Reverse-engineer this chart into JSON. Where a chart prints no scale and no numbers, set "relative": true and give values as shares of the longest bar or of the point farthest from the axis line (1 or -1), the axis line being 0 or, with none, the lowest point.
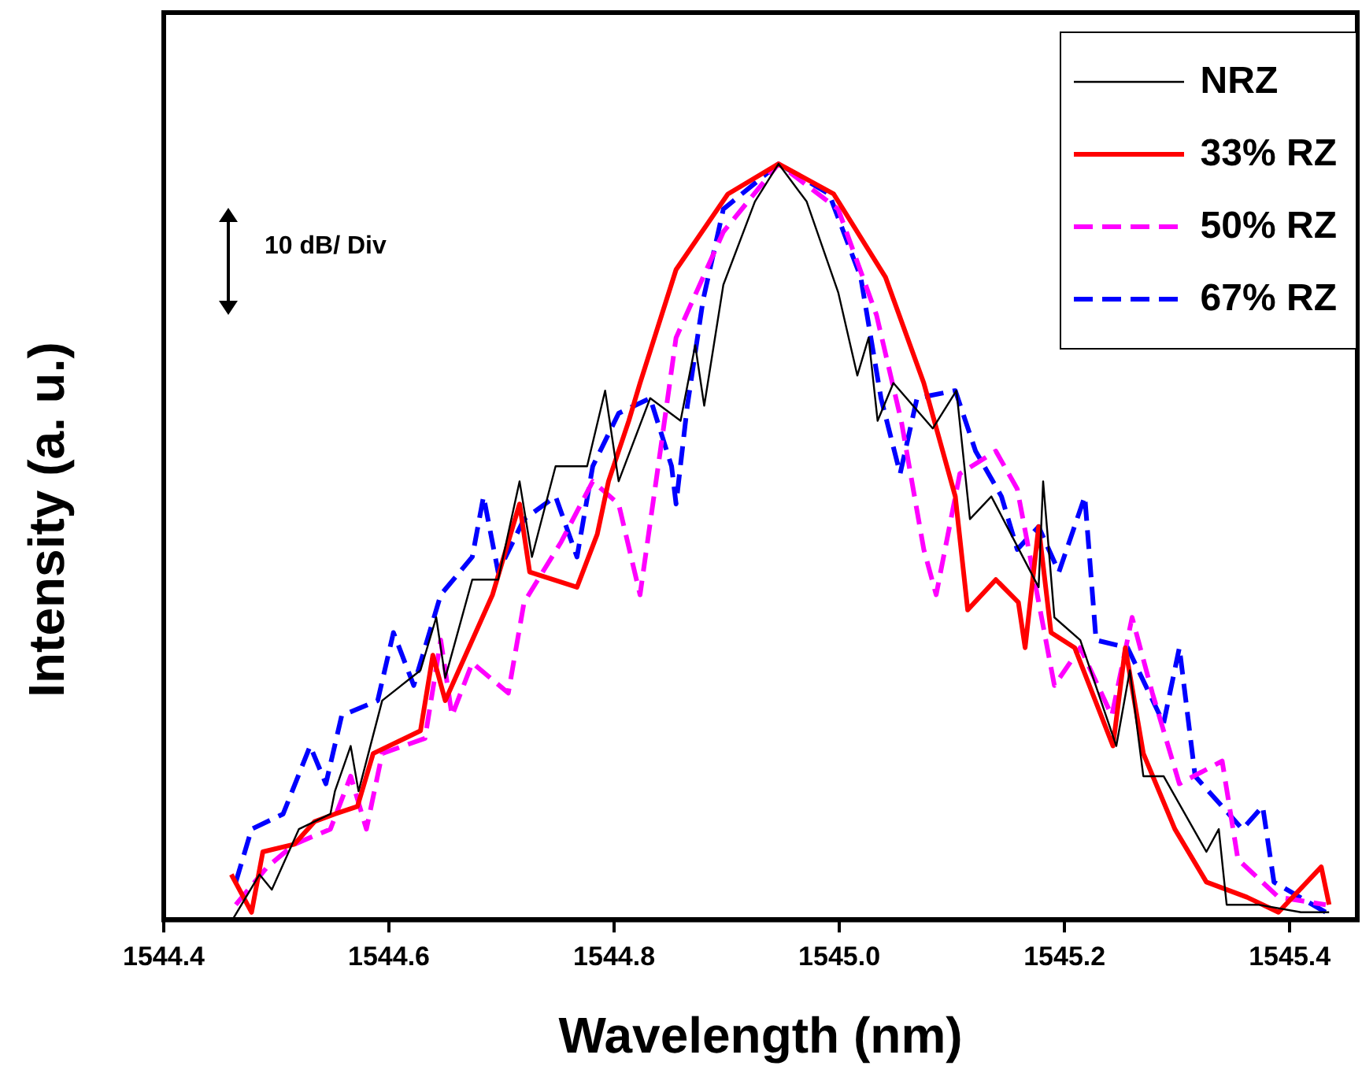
{
  "chart_data": {
    "type": "line",
    "relative": true,
    "xlabel": "Wavelength (nm)",
    "ylabel": "Intensity (a. u.)",
    "annotations": [
      "10 dB/ Div"
    ],
    "xlim": [
      1544.4,
      1545.46
    ],
    "xticks": [
      {
        "value": 1544.4,
        "label": "1544.4"
      },
      {
        "value": 1544.6,
        "label": "1544.6"
      },
      {
        "value": 1544.8,
        "label": "1544.8"
      },
      {
        "value": 1545.0,
        "label": "1545.0"
      },
      {
        "value": 1545.2,
        "label": "1545.2"
      },
      {
        "value": 1545.4,
        "label": "1545.4"
      }
    ],
    "grid": false,
    "legend": "top right",
    "marker": "none",
    "tick_labels": "x",
    "series": [
      {
        "name": "NRZ",
        "color": "#000000",
        "line_style": "solid",
        "x": [
          1544.461,
          1544.485,
          1544.496,
          1544.52,
          1544.548,
          1544.552,
          1544.566,
          1544.573,
          1544.594,
          1544.628,
          1544.642,
          1544.65,
          1544.674,
          1544.697,
          1544.716,
          1544.727,
          1544.748,
          1544.776,
          1544.792,
          1544.804,
          1544.832,
          1544.859,
          1544.872,
          1544.88,
          1544.897,
          1544.925,
          1544.946,
          1544.971,
          1544.999,
          1545.016,
          1545.026,
          1545.034,
          1545.048,
          1545.083,
          1545.104,
          1545.116,
          1545.135,
          1545.177,
          1545.181,
          1545.191,
          1545.214,
          1545.246,
          1545.258,
          1545.27,
          1545.288,
          1545.326,
          1545.337,
          1545.344,
          1545.372,
          1545.41,
          1545.435
        ],
        "values": [
          0,
          0.06,
          0.04,
          0.12,
          0.14,
          0.17,
          0.23,
          0.17,
          0.29,
          0.33,
          0.4,
          0.32,
          0.45,
          0.45,
          0.58,
          0.48,
          0.6,
          0.6,
          0.7,
          0.58,
          0.69,
          0.66,
          0.76,
          0.68,
          0.84,
          0.95,
          1,
          0.95,
          0.83,
          0.72,
          0.77,
          0.66,
          0.71,
          0.65,
          0.7,
          0.53,
          0.56,
          0.44,
          0.58,
          0.4,
          0.37,
          0.23,
          0.33,
          0.19,
          0.19,
          0.09,
          0.12,
          0.02,
          0.02,
          0.01,
          0.01
        ]
      },
      {
        "name": "33% RZ",
        "color": "#ff0000",
        "line_style": "solid",
        "x": [
          1544.46,
          1544.478,
          1544.488,
          1544.516,
          1544.534,
          1544.552,
          1544.572,
          1544.586,
          1544.628,
          1544.639,
          1544.65,
          1544.692,
          1544.716,
          1544.725,
          1544.767,
          1544.785,
          1544.795,
          1544.813,
          1544.823,
          1544.855,
          1544.901,
          1544.946,
          1544.995,
          1545.041,
          1545.075,
          1545.103,
          1545.114,
          1545.139,
          1545.159,
          1545.165,
          1545.177,
          1545.188,
          1545.209,
          1545.243,
          1545.254,
          1545.27,
          1545.298,
          1545.326,
          1545.362,
          1545.39,
          1545.428,
          1545.435
        ],
        "values": [
          0.06,
          0.01,
          0.09,
          0.1,
          0.13,
          0.14,
          0.15,
          0.22,
          0.25,
          0.35,
          0.29,
          0.43,
          0.55,
          0.46,
          0.44,
          0.51,
          0.58,
          0.66,
          0.71,
          0.86,
          0.96,
          1,
          0.96,
          0.85,
          0.71,
          0.56,
          0.41,
          0.45,
          0.42,
          0.36,
          0.52,
          0.38,
          0.36,
          0.23,
          0.36,
          0.22,
          0.12,
          0.05,
          0.03,
          0.01,
          0.07,
          0.02
        ]
      },
      {
        "name": "50% RZ",
        "color": "#ff00ff",
        "line_style": "dashed",
        "x": [
          1544.464,
          1544.492,
          1544.516,
          1544.548,
          1544.566,
          1544.58,
          1544.594,
          1544.632,
          1544.646,
          1544.656,
          1544.674,
          1544.706,
          1544.72,
          1544.753,
          1544.781,
          1544.804,
          1544.823,
          1544.841,
          1544.855,
          1544.897,
          1544.946,
          1544.999,
          1545.033,
          1545.055,
          1545.075,
          1545.086,
          1545.107,
          1545.139,
          1545.158,
          1545.172,
          1545.191,
          1545.214,
          1545.242,
          1545.26,
          1545.278,
          1545.302,
          1545.34,
          1545.354,
          1545.39,
          1545.432
        ],
        "values": [
          0.02,
          0.07,
          0.1,
          0.12,
          0.19,
          0.12,
          0.22,
          0.24,
          0.37,
          0.27,
          0.34,
          0.3,
          0.42,
          0.5,
          0.58,
          0.55,
          0.43,
          0.62,
          0.77,
          0.91,
          1,
          0.94,
          0.8,
          0.66,
          0.49,
          0.43,
          0.59,
          0.62,
          0.57,
          0.46,
          0.31,
          0.36,
          0.27,
          0.4,
          0.3,
          0.18,
          0.21,
          0.08,
          0.03,
          0.02
        ]
      },
      {
        "name": "67% RZ",
        "color": "#0000ff",
        "line_style": "dashed",
        "x": [
          1544.464,
          1544.478,
          1544.506,
          1544.53,
          1544.544,
          1544.558,
          1544.59,
          1544.604,
          1544.622,
          1544.646,
          1544.674,
          1544.684,
          1544.697,
          1544.72,
          1544.748,
          1544.767,
          1544.781,
          1544.804,
          1544.832,
          1544.851,
          1544.855,
          1544.865,
          1544.879,
          1544.897,
          1544.946,
          1544.991,
          1545.019,
          1545.037,
          1545.054,
          1545.069,
          1545.103,
          1545.121,
          1545.144,
          1545.158,
          1545.177,
          1545.195,
          1545.218,
          1545.228,
          1545.256,
          1545.288,
          1545.302,
          1545.316,
          1545.358,
          1545.376,
          1545.386,
          1545.432
        ],
        "values": [
          0.05,
          0.12,
          0.14,
          0.23,
          0.18,
          0.27,
          0.29,
          0.38,
          0.31,
          0.43,
          0.48,
          0.56,
          0.46,
          0.53,
          0.56,
          0.48,
          0.6,
          0.67,
          0.69,
          0.6,
          0.55,
          0.68,
          0.82,
          0.94,
          1,
          0.96,
          0.85,
          0.69,
          0.59,
          0.69,
          0.7,
          0.62,
          0.56,
          0.49,
          0.52,
          0.46,
          0.56,
          0.37,
          0.36,
          0.26,
          0.36,
          0.19,
          0.12,
          0.15,
          0.05,
          0.01
        ]
      }
    ]
  }
}
